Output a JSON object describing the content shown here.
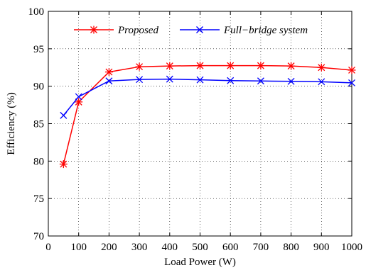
{
  "chart_data": {
    "type": "line",
    "title": "",
    "xlabel": "Load Power (W)",
    "ylabel": "Efficiency (%)",
    "xlim": [
      0,
      1000
    ],
    "ylim": [
      70,
      100
    ],
    "xticks": [
      0,
      100,
      200,
      300,
      400,
      500,
      600,
      700,
      800,
      900,
      1000
    ],
    "yticks": [
      70,
      75,
      80,
      85,
      90,
      95,
      100
    ],
    "xtick_labels": [
      "0",
      "100",
      "200",
      "300",
      "400",
      "500",
      "600",
      "700",
      "800",
      "900",
      "1000"
    ],
    "ytick_labels": [
      "70",
      "75",
      "80",
      "85",
      "90",
      "95",
      "100"
    ],
    "grid": true,
    "grid_style": "dotted",
    "legend_position": "top",
    "series": [
      {
        "name": "Proposed",
        "color": "#ff0000",
        "marker": "asterisk",
        "x": [
          50,
          100,
          200,
          300,
          400,
          500,
          600,
          700,
          800,
          900,
          1000
        ],
        "y": [
          79.6,
          87.9,
          91.9,
          92.6,
          92.7,
          92.75,
          92.75,
          92.75,
          92.7,
          92.5,
          92.15
        ]
      },
      {
        "name": "Full−bridge system",
        "color": "#0000ff",
        "marker": "x",
        "x": [
          50,
          100,
          200,
          300,
          400,
          500,
          600,
          700,
          800,
          900,
          1000
        ],
        "y": [
          86.1,
          88.6,
          90.7,
          90.9,
          90.95,
          90.85,
          90.75,
          90.7,
          90.65,
          90.6,
          90.45
        ]
      }
    ]
  }
}
